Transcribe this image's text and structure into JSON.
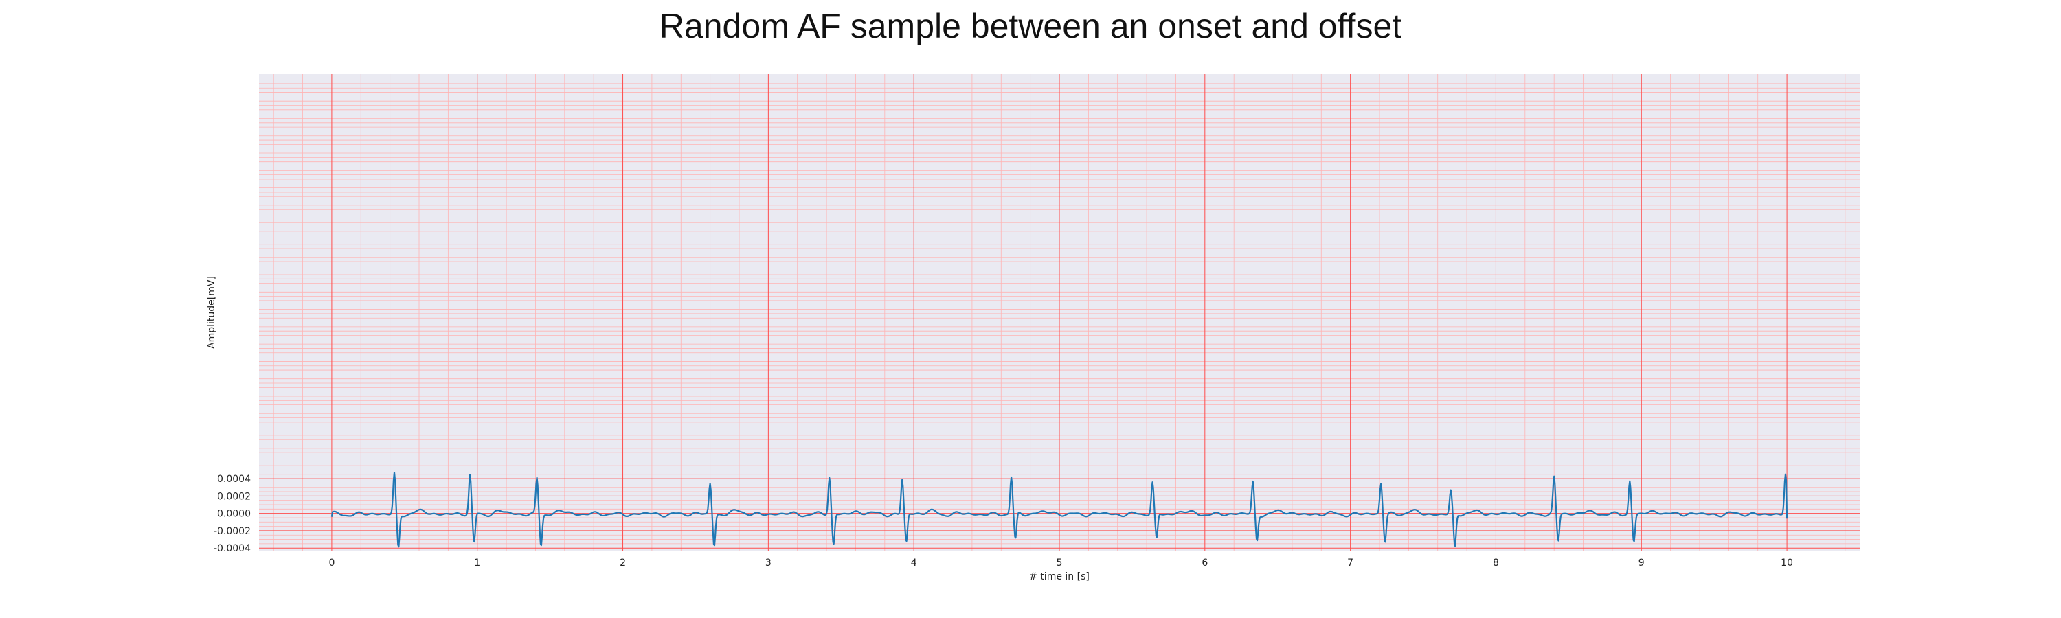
{
  "chart_data": {
    "type": "line",
    "title": "Random AF sample between an onset and offset",
    "xlabel": "# time in [s]",
    "ylabel": "Amplitude[mV]",
    "xlim": [
      -0.5,
      10.5
    ],
    "ylim": [
      -0.00043,
      0.00506
    ],
    "x_ticks": [
      0,
      1,
      2,
      3,
      4,
      5,
      6,
      7,
      8,
      9,
      10
    ],
    "x_tick_labels": [
      "0",
      "1",
      "2",
      "3",
      "4",
      "5",
      "6",
      "7",
      "8",
      "9",
      "10"
    ],
    "y_ticks": [
      -0.0004,
      -0.0002,
      0.0,
      0.0002,
      0.0004
    ],
    "y_tick_labels": [
      "-0.0004",
      "-0.0002",
      "0.0000",
      "0.0002",
      "0.0004"
    ],
    "grid": "on",
    "legend": "none",
    "colors": {
      "line": "#1f77b4",
      "background": "#eaeaf2",
      "major_grid": "#ff4d4d",
      "minor_grid": "#ffb3b3"
    },
    "qrs_complexes": [
      {
        "t": 0.43,
        "peak": 0.000465,
        "trough": -0.00039
      },
      {
        "t": 0.95,
        "peak": 0.000445,
        "trough": -0.00035
      },
      {
        "t": 1.41,
        "peak": 0.00041,
        "trough": -0.00036
      },
      {
        "t": 2.6,
        "peak": 0.000355,
        "trough": -0.00036
      },
      {
        "t": 3.42,
        "peak": 0.00042,
        "trough": -0.00036
      },
      {
        "t": 3.92,
        "peak": 0.0004,
        "trough": -0.00033
      },
      {
        "t": 4.67,
        "peak": 0.00042,
        "trough": -0.00031
      },
      {
        "t": 5.64,
        "peak": 0.000355,
        "trough": -0.000295
      },
      {
        "t": 6.33,
        "peak": 0.000365,
        "trough": -0.000305
      },
      {
        "t": 7.21,
        "peak": 0.000352,
        "trough": -0.000325
      },
      {
        "t": 7.69,
        "peak": 0.000265,
        "trough": -0.00039
      },
      {
        "t": 8.4,
        "peak": 0.00041,
        "trough": -0.000325
      },
      {
        "t": 8.92,
        "peak": 0.000385,
        "trough": -0.000315
      },
      {
        "t": 9.99,
        "peak": 0.00045,
        "trough": -6e-05
      }
    ],
    "signal_start": {
      "t": 0.0,
      "value": -4e-05
    },
    "signal_end": {
      "t": 10.0,
      "value": -6e-05
    }
  }
}
